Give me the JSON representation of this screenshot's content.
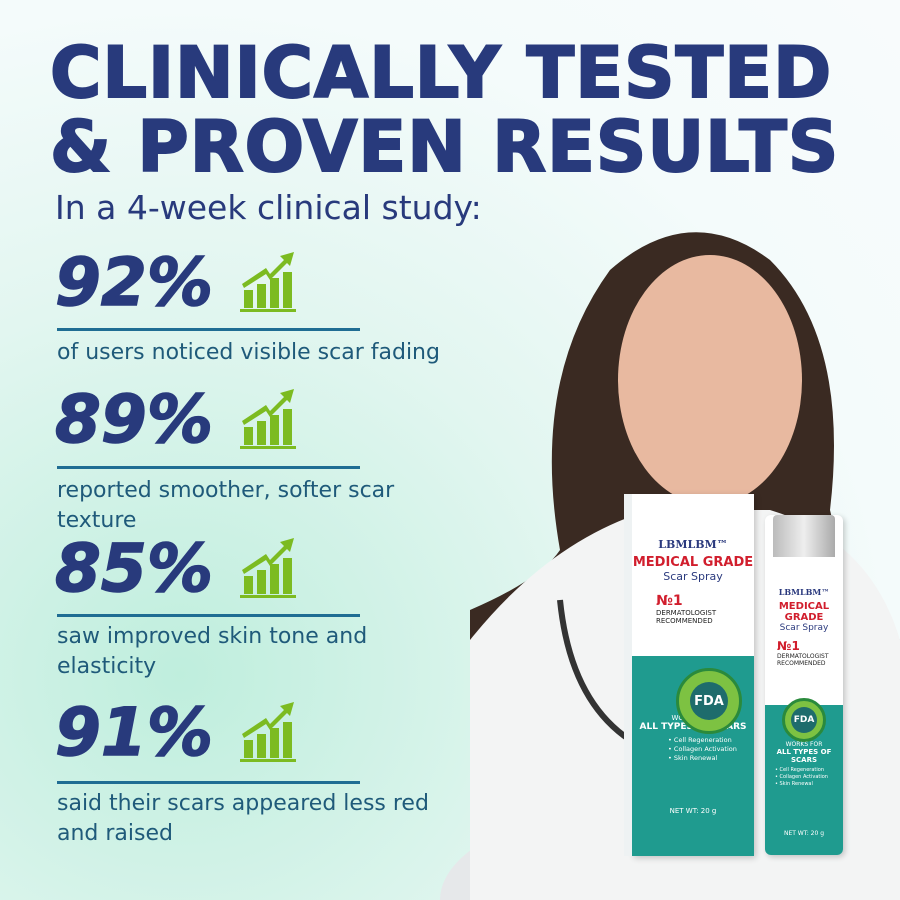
{
  "headline": {
    "line1": "CLINICALLY TESTED",
    "line2": "& PROVEN RESULTS"
  },
  "subheading": "In a 4-week clinical study:",
  "stats": [
    {
      "value": "92%",
      "caption": "of users noticed visible scar fading",
      "icon": "growth-chart-icon"
    },
    {
      "value": "89%",
      "caption": "reported smoother, softer scar texture",
      "icon": "growth-chart-icon"
    },
    {
      "value": "85%",
      "caption": "saw improved skin tone and elasticity",
      "icon": "growth-chart-icon"
    },
    {
      "value": "91%",
      "caption": "said their scars appeared less red and raised",
      "icon": "growth-chart-icon"
    }
  ],
  "product": {
    "brand": "LBMLBM™",
    "grade": "MEDICAL GRADE",
    "name": "Scar Spray",
    "rank": "№1",
    "recommend": "DERMATOLOGIST RECOMMENDED",
    "seal_top": "APPROVED",
    "seal_center": "FDA",
    "seal_bottom": "APPROVED",
    "works": "WORKS FOR",
    "types": "ALL TYPES OF SCARS",
    "benefits": [
      "• Cell Regeneration",
      "• Collagen Activation",
      "• Skin Renewal"
    ],
    "net_wt": "NET WT: 20 g"
  },
  "colors": {
    "navy": "#283a7c",
    "green": "#7cbb21",
    "teal": "#1f9b8f",
    "red": "#d11e2d"
  }
}
